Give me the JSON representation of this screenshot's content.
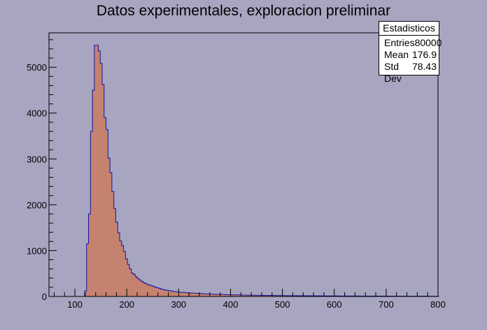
{
  "chart_data": {
    "type": "histogram",
    "title": "Datos experimentales, exploracion preliminar",
    "xlabel": "",
    "ylabel": "",
    "xlim": [
      50,
      800
    ],
    "ylim": [
      0,
      5750
    ],
    "x_ticks": [
      100,
      200,
      300,
      400,
      500,
      600,
      700,
      800
    ],
    "y_ticks": [
      0,
      1000,
      2000,
      3000,
      4000,
      5000
    ],
    "bin_start": 100,
    "bin_width": 3.75,
    "values": [
      0,
      0,
      0,
      0,
      0,
      120,
      1150,
      1800,
      3600,
      4500,
      5480,
      5480,
      5360,
      5080,
      4620,
      3900,
      3640,
      3020,
      2700,
      2290,
      1920,
      1620,
      1390,
      1210,
      1110,
      980,
      820,
      700,
      600,
      510,
      480,
      430,
      390,
      360,
      330,
      300,
      280,
      260,
      250,
      235,
      220,
      200,
      190,
      175,
      160,
      150,
      140,
      135,
      125,
      120,
      110,
      105,
      100,
      95,
      90,
      88,
      85,
      80,
      78,
      75,
      72,
      70,
      68,
      65,
      62,
      60,
      58,
      56,
      55,
      54,
      52,
      50,
      48,
      46,
      45,
      44,
      42,
      40,
      39,
      38,
      37,
      36,
      35,
      34,
      33,
      32,
      31,
      30,
      29,
      28,
      27,
      27,
      26,
      25,
      25,
      24,
      24,
      23,
      23,
      22,
      22,
      21,
      21,
      20,
      20,
      20,
      19,
      19,
      18,
      18,
      18,
      17,
      17,
      17,
      16,
      16,
      16,
      15,
      15,
      15,
      14,
      14,
      14,
      14,
      13,
      13,
      13,
      12,
      12,
      12,
      12,
      11,
      11,
      11,
      11,
      11,
      10,
      10,
      10,
      10,
      10,
      9,
      9,
      9,
      9,
      9,
      9,
      8,
      8,
      8,
      8,
      8,
      8,
      8,
      7,
      7,
      7,
      7,
      7,
      7,
      7,
      7,
      6,
      6,
      6,
      6,
      6,
      6,
      6,
      6,
      6,
      5,
      5,
      5,
      5,
      5,
      5,
      5,
      5,
      5,
      5,
      5,
      4,
      4,
      4,
      4,
      4
    ],
    "colors": {
      "fill": "#c5826f",
      "line": "#1414a0",
      "background": "#a8a5c0",
      "frame": "#000000"
    }
  },
  "stats": {
    "title": "Estadisticos",
    "rows": [
      {
        "label": "Entries",
        "value": "80000"
      },
      {
        "label": "Mean",
        "value": "176.9"
      },
      {
        "label": "Std Dev",
        "value": "78.43"
      }
    ]
  }
}
